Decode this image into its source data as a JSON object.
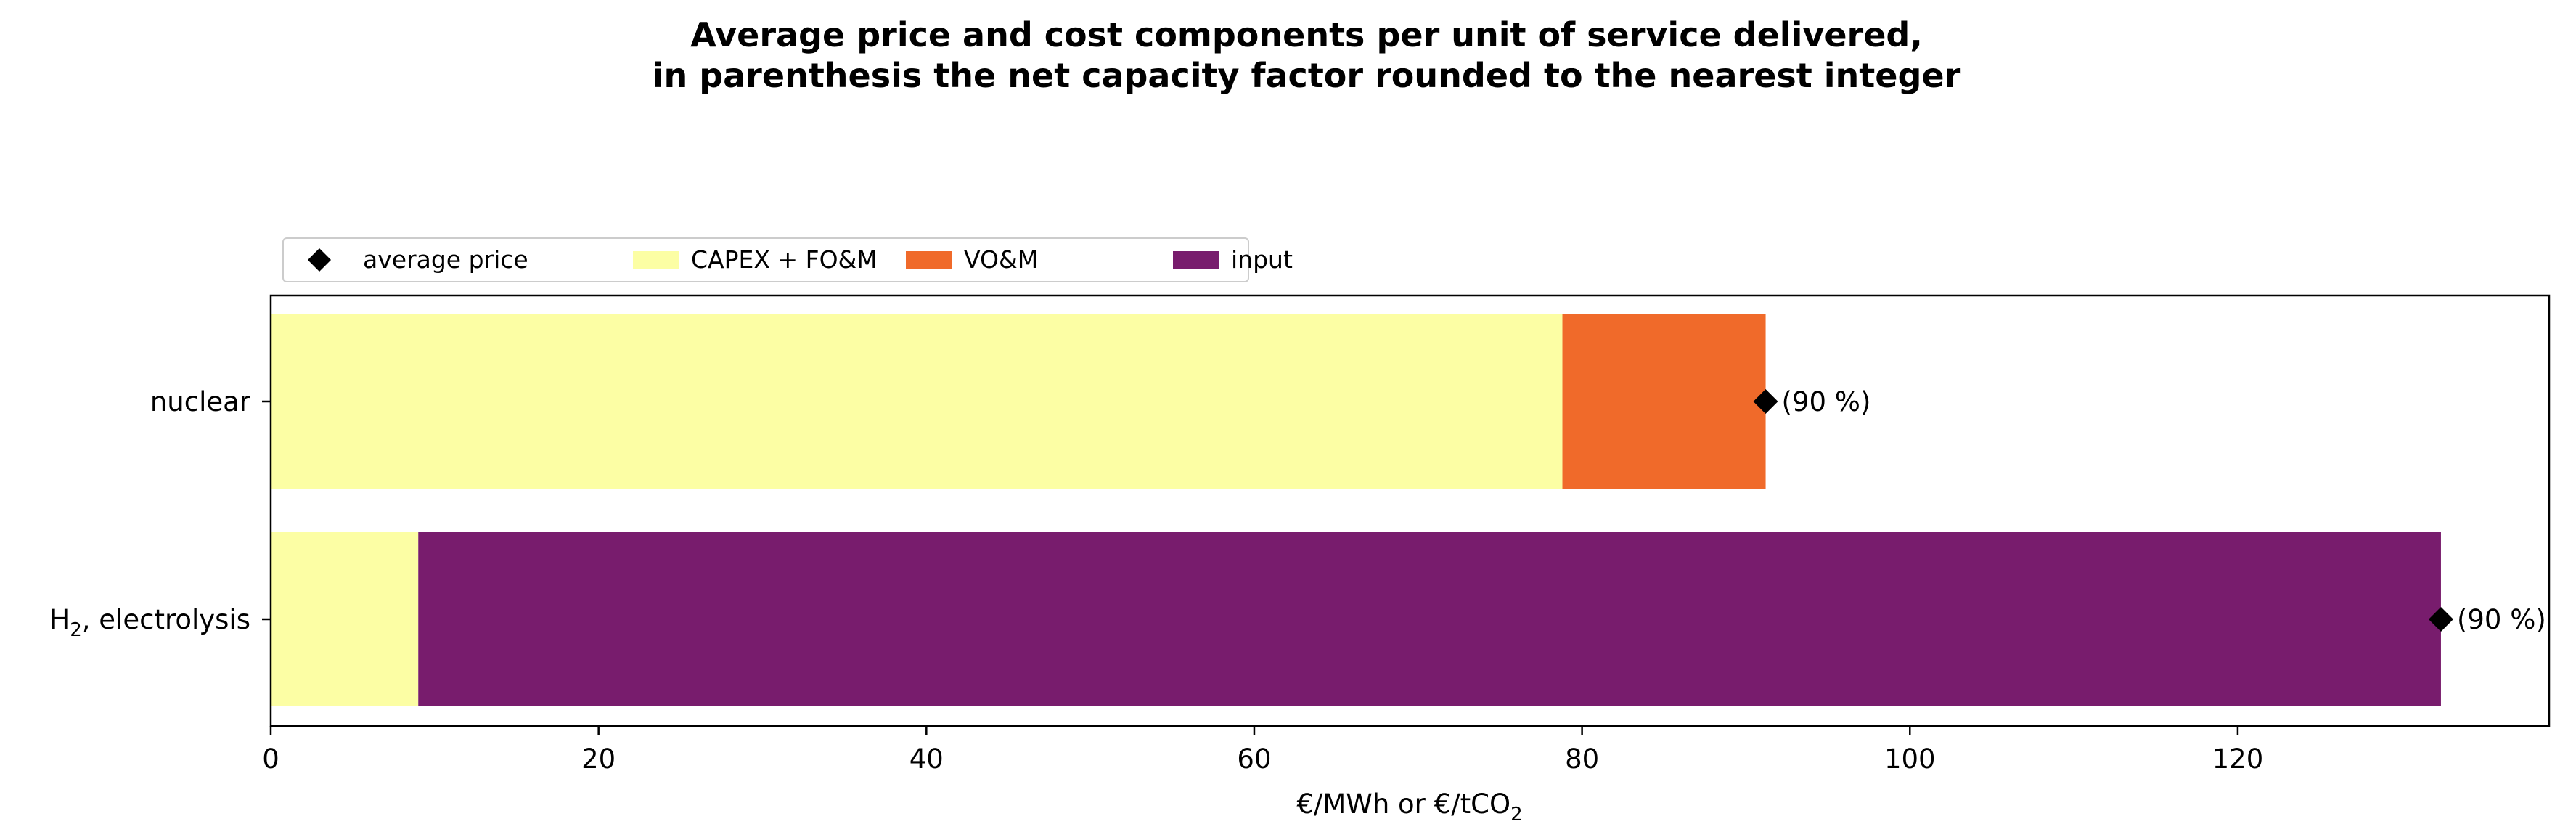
{
  "chart_data": {
    "type": "bar",
    "orientation": "horizontal",
    "stacked": true,
    "title_line1": "Average price and cost components per unit of service delivered,",
    "title_line2": "in parenthesis the net capacity factor rounded to the nearest integer",
    "xlabel_main": "€/MWh or €/tCO",
    "xlabel_sub": "2",
    "categories": [
      {
        "label_main": "nuclear",
        "label_sub": "",
        "label_rest": ""
      },
      {
        "label_main": "H",
        "label_sub": "2",
        "label_rest": ", electrolysis"
      }
    ],
    "series": [
      {
        "name": "CAPEX + FO&M",
        "color": "#fcfea4",
        "values": [
          78.8,
          9.0
        ]
      },
      {
        "name": "VO&M",
        "color": "#f06a2a",
        "values": [
          12.4,
          0
        ]
      },
      {
        "name": "input",
        "color": "#781c6d",
        "values": [
          0,
          123.4
        ]
      }
    ],
    "average_price": {
      "name": "average price",
      "color": "#000000",
      "values": [
        91.2,
        132.4
      ]
    },
    "annotations": [
      "(90 %)",
      "(90 %)"
    ],
    "xlim": [
      0,
      139
    ],
    "xticks": [
      0,
      20,
      40,
      60,
      80,
      100,
      120
    ],
    "legend_placement": "top-left, above axes",
    "grid": false
  }
}
